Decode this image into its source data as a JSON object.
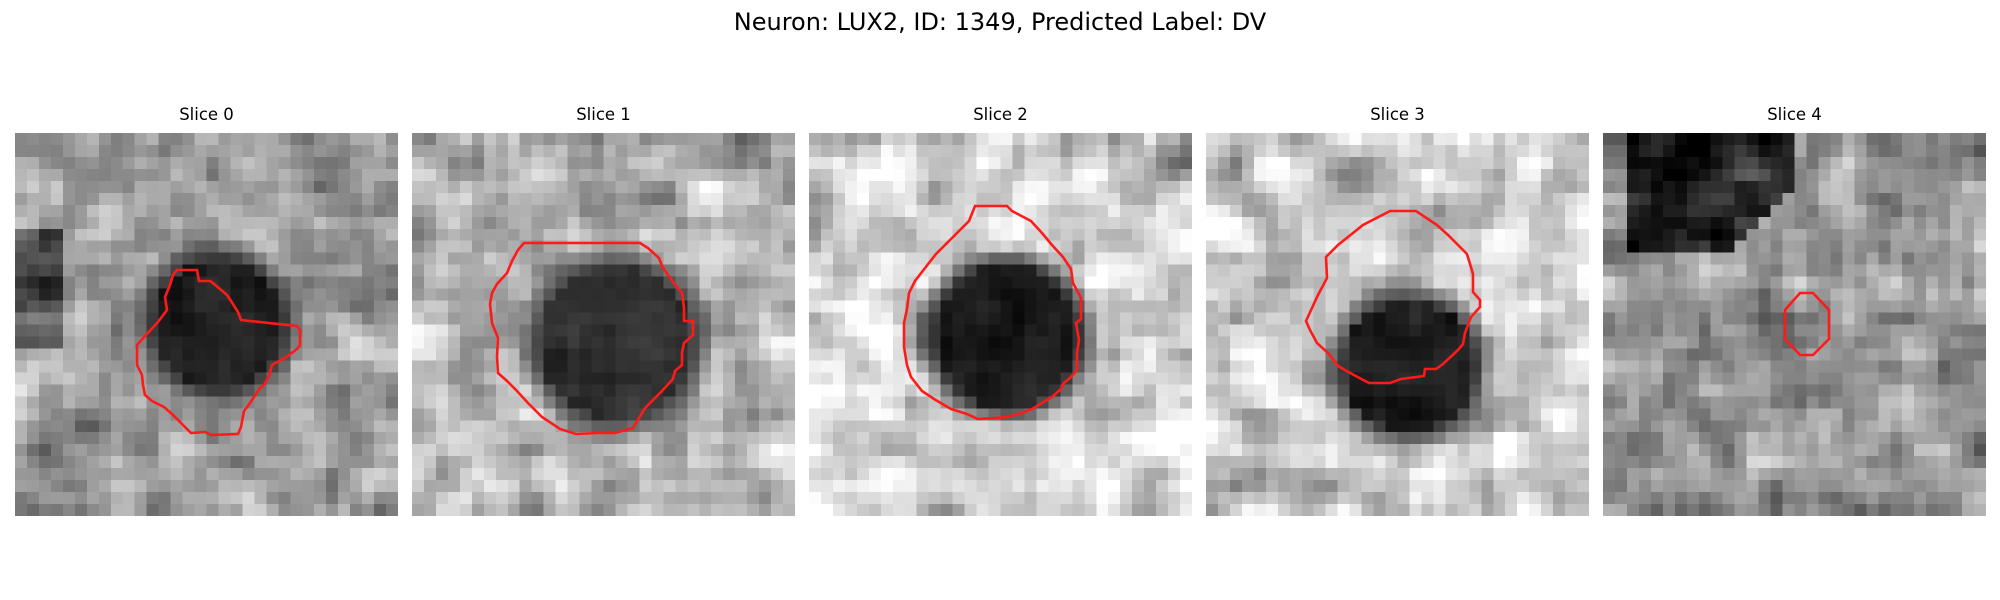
{
  "figure": {
    "title": "Neuron: LUX2, ID: 1349, Predicted Label: DV",
    "contour_color": "#ff1a1a",
    "colormap": "gray"
  },
  "panels": [
    {
      "title": "Slice 0",
      "image": "grayscale-micrograph",
      "outline": "red-roi-outline"
    },
    {
      "title": "Slice 1",
      "image": "grayscale-micrograph",
      "outline": "red-roi-outline"
    },
    {
      "title": "Slice 2",
      "image": "grayscale-micrograph",
      "outline": "red-roi-outline"
    },
    {
      "title": "Slice 3",
      "image": "grayscale-micrograph",
      "outline": "red-roi-outline"
    },
    {
      "title": "Slice 4",
      "image": "grayscale-micrograph",
      "outline": "red-roi-outline"
    }
  ]
}
